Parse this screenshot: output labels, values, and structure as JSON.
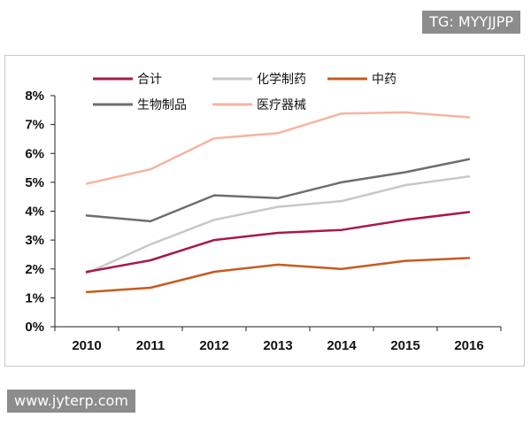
{
  "watermarks": {
    "top": "TG: MYYJJPP",
    "bottom": "www.jyterp.com"
  },
  "chart_data": {
    "type": "line",
    "title": "",
    "xlabel": "",
    "ylabel": "",
    "categories": [
      "2010",
      "2011",
      "2012",
      "2013",
      "2014",
      "2015",
      "2016"
    ],
    "ylim": [
      0,
      8
    ],
    "yticks": [
      "0%",
      "1%",
      "2%",
      "3%",
      "4%",
      "5%",
      "6%",
      "7%",
      "8%"
    ],
    "grid": false,
    "legend_position": "top",
    "series": [
      {
        "name": "合计",
        "color": "#a8194a",
        "values": [
          1.9,
          2.3,
          3.0,
          3.25,
          3.35,
          3.7,
          3.97
        ]
      },
      {
        "name": "化学制药",
        "color": "#c8c8c8",
        "values": [
          1.85,
          2.85,
          3.7,
          4.15,
          4.35,
          4.9,
          5.2
        ]
      },
      {
        "name": "中药",
        "color": "#c85a1e",
        "values": [
          1.2,
          1.35,
          1.9,
          2.15,
          2.0,
          2.28,
          2.38
        ]
      },
      {
        "name": "生物制品",
        "color": "#6e6e6e",
        "values": [
          3.85,
          3.65,
          4.55,
          4.45,
          5.0,
          5.35,
          5.8
        ]
      },
      {
        "name": "医疗器械",
        "color": "#f5b5a0",
        "values": [
          4.95,
          5.45,
          6.52,
          6.7,
          7.38,
          7.42,
          7.25
        ]
      }
    ]
  }
}
